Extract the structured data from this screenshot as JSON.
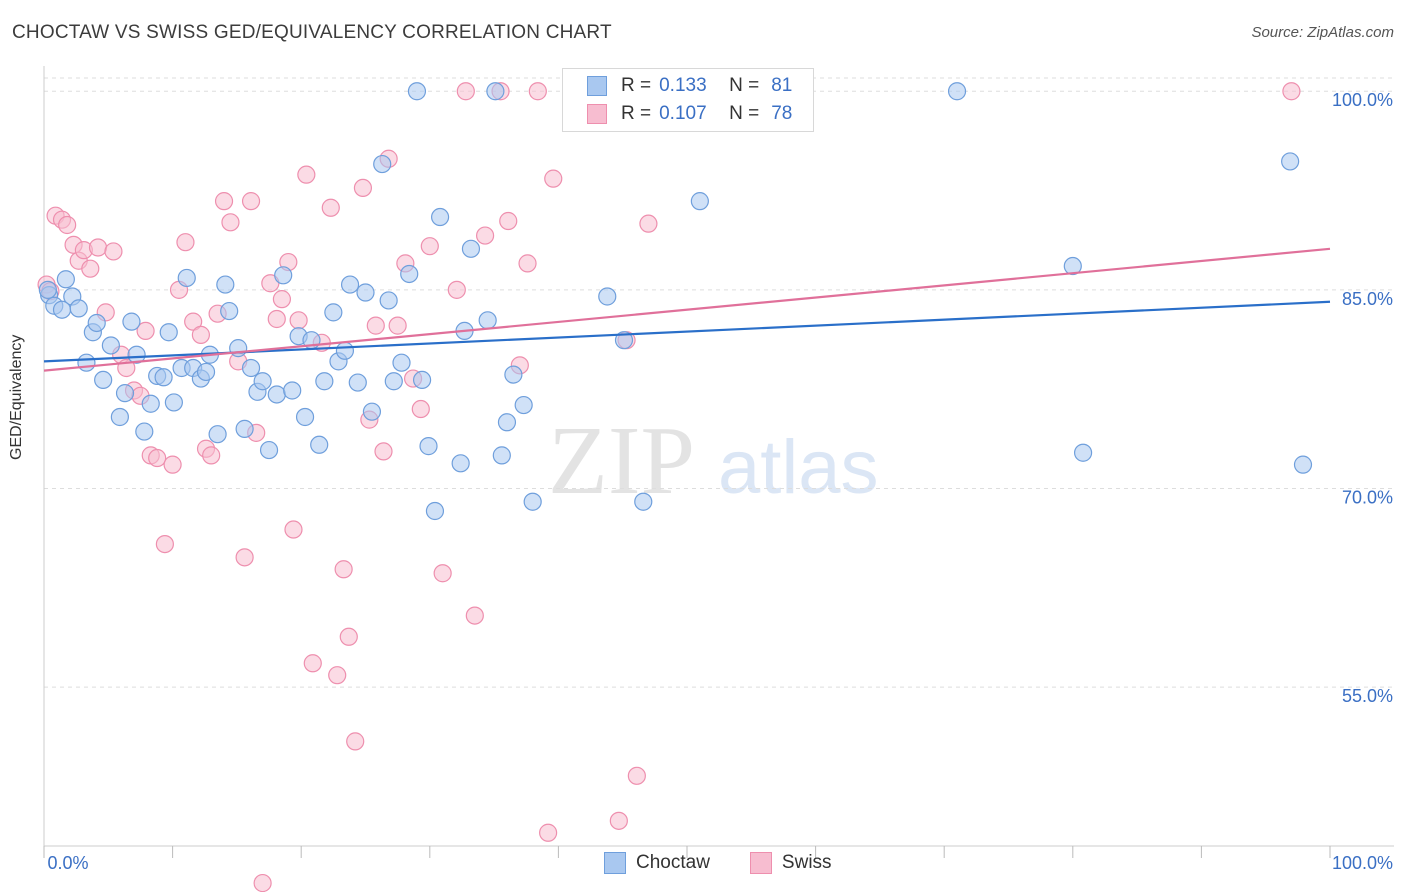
{
  "title": "CHOCTAW VS SWISS GED/EQUIVALENCY CORRELATION CHART",
  "source": "Source: ZipAtlas.com",
  "legend": {
    "r_label": "R =",
    "n_label": "N =",
    "choctaw": {
      "r": "0.133",
      "n": "81"
    },
    "swiss": {
      "r": "0.107",
      "n": "78"
    }
  },
  "bottom_legend": {
    "choctaw": "Choctaw",
    "swiss": "Swiss"
  },
  "watermark": {
    "zip": "ZIP",
    "atlas": "atlas"
  },
  "colors": {
    "choctaw_fill": "#a9c8f0",
    "choctaw_stroke": "#6f9fdc",
    "choctaw_line": "#2a6fc9",
    "swiss_fill": "#f7bdd0",
    "swiss_stroke": "#ee8fae",
    "swiss_line": "#e0709a",
    "tick_label": "#3a6fc4",
    "grid": "#dddddd"
  },
  "chart_data": {
    "type": "scatter",
    "title": "CHOCTAW VS SWISS GED/EQUIVALENCY CORRELATION CHART",
    "xlabel": "",
    "ylabel": "GED/Equivalency",
    "xlim": [
      0,
      100
    ],
    "ylim": [
      43,
      101
    ],
    "x_tick_labels": [
      "0.0%",
      "100.0%"
    ],
    "y_ticks": [
      55,
      70,
      85,
      100
    ],
    "y_tick_labels": [
      "55.0%",
      "70.0%",
      "85.0%",
      "100.0%"
    ],
    "grid": true,
    "series": [
      {
        "name": "Choctaw",
        "trend": [
          [
            0,
            79.6
          ],
          [
            100,
            84.1
          ]
        ],
        "points": [
          [
            0.4,
            84.6
          ],
          [
            0.8,
            83.8
          ],
          [
            1.4,
            83.5
          ],
          [
            1.7,
            85.8
          ],
          [
            2.2,
            84.5
          ],
          [
            2.7,
            83.6
          ],
          [
            3.3,
            79.5
          ],
          [
            3.8,
            81.8
          ],
          [
            4.1,
            82.5
          ],
          [
            4.6,
            78.2
          ],
          [
            5.2,
            80.8
          ],
          [
            5.9,
            75.4
          ],
          [
            6.3,
            77.2
          ],
          [
            6.8,
            82.6
          ],
          [
            7.2,
            80.1
          ],
          [
            7.8,
            74.3
          ],
          [
            8.3,
            76.4
          ],
          [
            8.8,
            78.5
          ],
          [
            9.3,
            78.4
          ],
          [
            9.7,
            81.8
          ],
          [
            10.1,
            76.5
          ],
          [
            10.7,
            79.1
          ],
          [
            11.1,
            85.9
          ],
          [
            11.6,
            79.1
          ],
          [
            12.2,
            78.3
          ],
          [
            12.6,
            78.8
          ],
          [
            12.9,
            80.1
          ],
          [
            13.5,
            74.1
          ],
          [
            14.1,
            85.4
          ],
          [
            14.4,
            83.4
          ],
          [
            15.1,
            80.6
          ],
          [
            15.6,
            74.5
          ],
          [
            16.1,
            79.1
          ],
          [
            16.6,
            77.3
          ],
          [
            17.0,
            78.1
          ],
          [
            17.5,
            72.9
          ],
          [
            18.1,
            77.1
          ],
          [
            18.6,
            86.1
          ],
          [
            19.3,
            77.4
          ],
          [
            19.8,
            81.5
          ],
          [
            20.3,
            75.4
          ],
          [
            20.8,
            81.2
          ],
          [
            21.4,
            73.3
          ],
          [
            21.8,
            78.1
          ],
          [
            22.5,
            83.3
          ],
          [
            22.9,
            79.6
          ],
          [
            23.4,
            80.4
          ],
          [
            23.8,
            85.4
          ],
          [
            24.4,
            78.0
          ],
          [
            25.0,
            84.8
          ],
          [
            25.5,
            75.8
          ],
          [
            26.3,
            94.5
          ],
          [
            26.8,
            84.2
          ],
          [
            27.2,
            78.1
          ],
          [
            27.8,
            79.5
          ],
          [
            28.4,
            86.2
          ],
          [
            29.0,
            100
          ],
          [
            29.4,
            78.2
          ],
          [
            29.9,
            73.2
          ],
          [
            30.4,
            68.3
          ],
          [
            30.8,
            90.5
          ],
          [
            32.4,
            71.9
          ],
          [
            32.7,
            81.9
          ],
          [
            33.2,
            88.1
          ],
          [
            34.5,
            82.7
          ],
          [
            35.1,
            100
          ],
          [
            35.6,
            72.5
          ],
          [
            36.0,
            75.0
          ],
          [
            36.5,
            78.6
          ],
          [
            37.3,
            76.3
          ],
          [
            38.0,
            69.0
          ],
          [
            43.8,
            84.5
          ],
          [
            45.1,
            81.2
          ],
          [
            46.6,
            69.0
          ],
          [
            51.0,
            91.7
          ],
          [
            71.0,
            100
          ],
          [
            80.0,
            86.8
          ],
          [
            80.8,
            72.7
          ],
          [
            96.9,
            94.7
          ],
          [
            97.9,
            71.8
          ],
          [
            0.3,
            85.0
          ]
        ]
      },
      {
        "name": "Swiss",
        "trend": [
          [
            0,
            78.9
          ],
          [
            100,
            88.1
          ]
        ],
        "points": [
          [
            0.2,
            85.4
          ],
          [
            0.5,
            84.9
          ],
          [
            0.9,
            90.6
          ],
          [
            1.4,
            90.3
          ],
          [
            1.8,
            89.9
          ],
          [
            2.3,
            88.4
          ],
          [
            2.7,
            87.2
          ],
          [
            3.1,
            88.0
          ],
          [
            3.6,
            86.6
          ],
          [
            4.2,
            88.2
          ],
          [
            4.8,
            83.3
          ],
          [
            5.4,
            87.9
          ],
          [
            6.0,
            80.1
          ],
          [
            6.4,
            79.1
          ],
          [
            7.0,
            77.4
          ],
          [
            7.5,
            77.0
          ],
          [
            7.9,
            81.9
          ],
          [
            8.3,
            72.5
          ],
          [
            8.8,
            72.3
          ],
          [
            9.4,
            65.8
          ],
          [
            10.0,
            71.8
          ],
          [
            10.5,
            85.0
          ],
          [
            11.0,
            88.6
          ],
          [
            11.6,
            82.6
          ],
          [
            12.2,
            81.6
          ],
          [
            12.6,
            73.0
          ],
          [
            13.0,
            72.5
          ],
          [
            13.5,
            83.2
          ],
          [
            14.0,
            91.7
          ],
          [
            14.5,
            90.1
          ],
          [
            15.1,
            79.6
          ],
          [
            15.6,
            64.8
          ],
          [
            16.1,
            91.7
          ],
          [
            16.5,
            74.2
          ],
          [
            17.0,
            40.2
          ],
          [
            17.6,
            85.5
          ],
          [
            18.1,
            82.8
          ],
          [
            18.5,
            84.3
          ],
          [
            19.0,
            87.1
          ],
          [
            19.4,
            66.9
          ],
          [
            19.8,
            82.7
          ],
          [
            20.4,
            93.7
          ],
          [
            20.9,
            56.8
          ],
          [
            21.6,
            81.0
          ],
          [
            22.3,
            91.2
          ],
          [
            22.8,
            55.9
          ],
          [
            23.3,
            63.9
          ],
          [
            23.7,
            58.8
          ],
          [
            24.2,
            50.9
          ],
          [
            24.8,
            92.7
          ],
          [
            25.3,
            75.2
          ],
          [
            25.8,
            82.3
          ],
          [
            26.4,
            72.8
          ],
          [
            26.8,
            94.9
          ],
          [
            27.5,
            82.3
          ],
          [
            28.1,
            87.0
          ],
          [
            28.7,
            78.3
          ],
          [
            29.3,
            76.0
          ],
          [
            30.0,
            88.3
          ],
          [
            31.0,
            63.6
          ],
          [
            32.1,
            85.0
          ],
          [
            32.8,
            100
          ],
          [
            33.5,
            60.4
          ],
          [
            34.3,
            89.1
          ],
          [
            35.5,
            100
          ],
          [
            36.1,
            90.2
          ],
          [
            37.0,
            79.3
          ],
          [
            37.6,
            87.0
          ],
          [
            38.4,
            100
          ],
          [
            39.2,
            44.0
          ],
          [
            39.6,
            93.4
          ],
          [
            44.0,
            100
          ],
          [
            44.7,
            44.9
          ],
          [
            45.3,
            81.2
          ],
          [
            46.1,
            48.3
          ],
          [
            47.0,
            90.0
          ],
          [
            52.0,
            100
          ],
          [
            97.0,
            100
          ]
        ]
      }
    ]
  }
}
